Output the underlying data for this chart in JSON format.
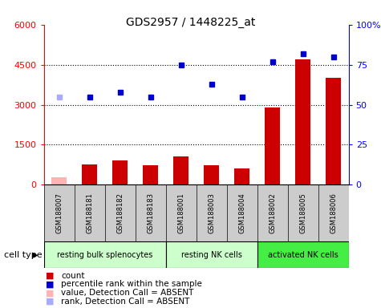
{
  "title": "GDS2957 / 1448225_at",
  "samples": [
    "GSM188007",
    "GSM188181",
    "GSM188182",
    "GSM188183",
    "GSM188001",
    "GSM188003",
    "GSM188004",
    "GSM188002",
    "GSM188005",
    "GSM188006"
  ],
  "counts": [
    280,
    750,
    900,
    720,
    1050,
    740,
    620,
    2900,
    4700,
    4000
  ],
  "absent_count_idx": [
    0
  ],
  "percentile_ranks": [
    55,
    55,
    58,
    55,
    75,
    63,
    55,
    77,
    82,
    80
  ],
  "absent_rank_idx": [
    0
  ],
  "cell_types": [
    {
      "label": "resting bulk splenocytes",
      "start": 0,
      "end": 4,
      "color": "#ccffcc"
    },
    {
      "label": "resting NK cells",
      "start": 4,
      "end": 7,
      "color": "#ccffcc"
    },
    {
      "label": "activated NK cells",
      "start": 7,
      "end": 10,
      "color": "#44ee44"
    }
  ],
  "ylim_left": [
    0,
    6000
  ],
  "yticks_left": [
    0,
    1500,
    3000,
    4500,
    6000
  ],
  "ylim_right": [
    0,
    100
  ],
  "yticks_right": [
    0,
    25,
    50,
    75,
    100
  ],
  "bar_color_normal": "#cc0000",
  "bar_color_absent": "#ffb3b3",
  "scatter_color_normal": "#0000cc",
  "scatter_color_absent": "#aaaaff",
  "bar_width": 0.5,
  "percentile_scale": 60
}
